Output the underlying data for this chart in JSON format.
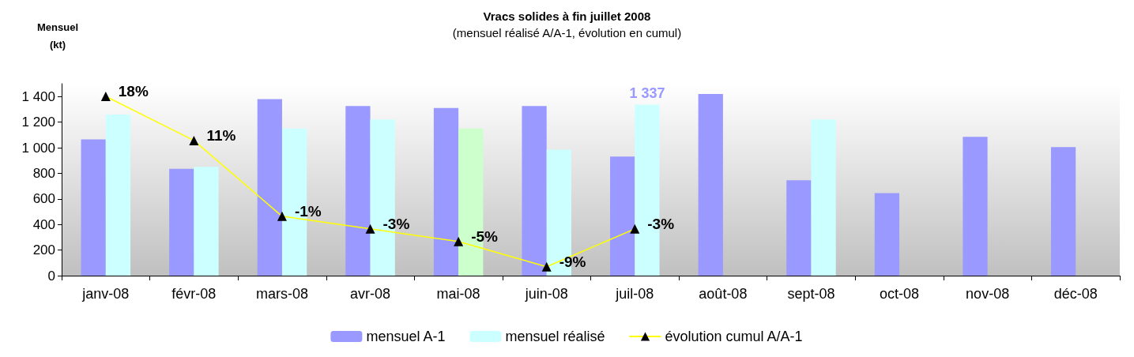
{
  "chart_data": {
    "type": "bar",
    "title": "Vracs solides à fin juillet 2008",
    "subtitle": "(mensuel réalisé A/A-1, évolution en cumul)",
    "ylabel": "Mensuel\n(kt)",
    "categories": [
      "janv-08",
      "févr-08",
      "mars-08",
      "avr-08",
      "mai-08",
      "juin-08",
      "juil-08",
      "août-08",
      "sept-08",
      "oct-08",
      "nov-08",
      "déc-08"
    ],
    "series": [
      {
        "name": "mensuel A-1",
        "color": "#9999ff",
        "values": [
          1065,
          835,
          1380,
          1325,
          1310,
          1325,
          930,
          1420,
          745,
          645,
          1085,
          1005
        ]
      },
      {
        "name": "mensuel réalisé",
        "color": "#ccffff",
        "colors": [
          "#ccffff",
          "#ccffff",
          "#ccffff",
          "#ccffff",
          "#ccffcc",
          "#ccffff",
          "#ccffff",
          null,
          "#ccffff",
          null,
          null,
          null
        ],
        "values": [
          1260,
          850,
          1150,
          1220,
          1150,
          985,
          1337,
          null,
          1220,
          null,
          null,
          null
        ],
        "value_labels": [
          null,
          null,
          null,
          null,
          null,
          null,
          "1 337",
          null,
          null,
          null,
          null,
          null
        ]
      },
      {
        "name": "évolution cumul A/A-1",
        "type": "line",
        "axis": "y2",
        "color": "#ffff00",
        "marker": "triangle",
        "values": [
          18,
          11,
          -1,
          -3,
          -5,
          -9,
          -3,
          null,
          null,
          null,
          null,
          null
        ],
        "value_labels": [
          "18%",
          "11%",
          "-1%",
          "-3%",
          "-5%",
          "-9%",
          "-3%",
          null,
          null,
          null,
          null,
          null
        ]
      }
    ],
    "ylim": [
      0,
      1500
    ],
    "yticks": [
      0,
      200,
      400,
      600,
      800,
      {
        "value": 1000,
        "label": "1 000"
      },
      {
        "value": 1200,
        "label": "1 200"
      },
      {
        "value": 1400,
        "label": "1 400"
      }
    ],
    "y2lim": [
      -10.4,
      20
    ],
    "tick_labels": "xy",
    "grid": false,
    "legend": "bottom"
  }
}
